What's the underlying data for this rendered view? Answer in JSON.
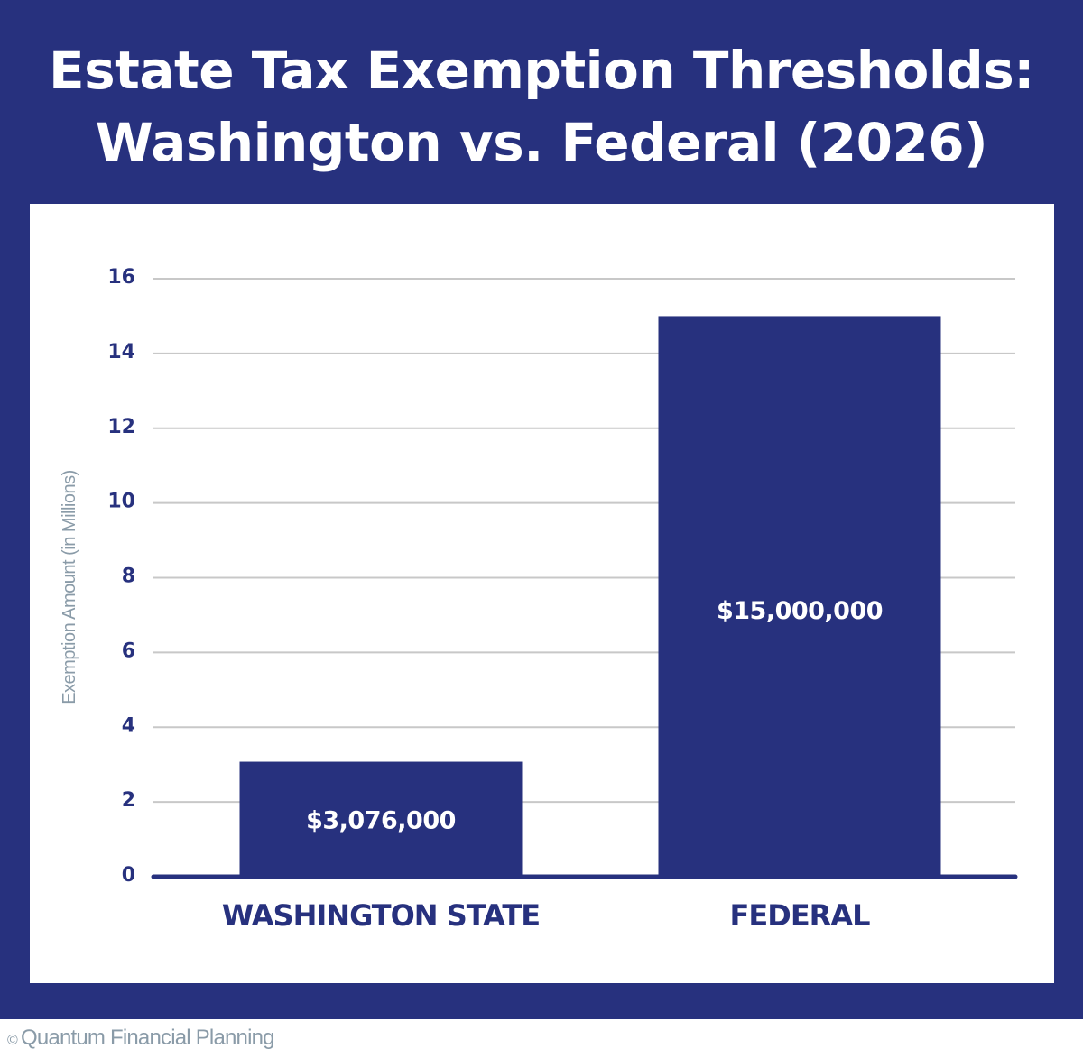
{
  "chart_data": {
    "type": "bar",
    "title_line1": "Estate Tax Exemption Thresholds:",
    "title_line2": "Washington vs. Federal (2026)",
    "xlabel": "",
    "ylabel": "Exemption Amount (in Millions)",
    "ylim": [
      0,
      16
    ],
    "yticks": [
      0,
      2,
      4,
      6,
      8,
      10,
      12,
      14,
      16
    ],
    "grid": true,
    "categories": [
      "WASHINGTON STATE",
      "FEDERAL"
    ],
    "values": [
      3.076,
      15
    ],
    "data_labels": [
      "$3,076,000",
      "$15,000,000"
    ],
    "colors": {
      "bar": "#27317e",
      "background": "#27317e",
      "grid": "#c8c8c8",
      "axis_label": "#8a9ba8"
    }
  },
  "footer": {
    "copyright_symbol": "©",
    "text": "Quantum Financial Planning"
  }
}
